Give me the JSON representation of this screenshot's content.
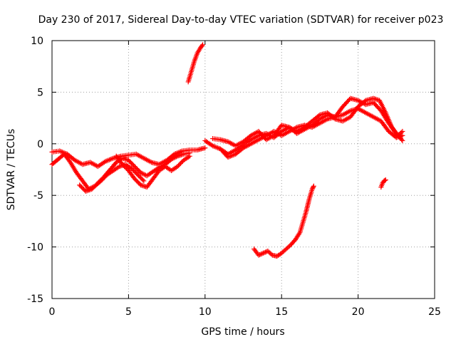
{
  "chart_data": {
    "type": "scatter",
    "title": "Day 230 of 2017, Sidereal Day-to-day VTEC variation (SDTVAR) for receiver p023",
    "xlabel": "GPS time / hours",
    "ylabel": "SDTVAR / TECUs",
    "xlim": [
      0,
      25
    ],
    "ylim": [
      -15,
      10
    ],
    "xticks": [
      "0",
      "5",
      "10",
      "15",
      "20",
      "25"
    ],
    "yticks": [
      "-15",
      "-10",
      "-5",
      "0",
      "5",
      "10"
    ],
    "grid": true,
    "marker": "+",
    "color": "#ff0000",
    "series": [
      {
        "name": "track-a",
        "points": [
          [
            0,
            -0.8
          ],
          [
            0.5,
            -0.7
          ],
          [
            1.0,
            -1.0
          ],
          [
            1.5,
            -1.6
          ],
          [
            2.0,
            -2.0
          ],
          [
            2.5,
            -1.8
          ],
          [
            3.0,
            -2.2
          ],
          [
            3.5,
            -1.7
          ],
          [
            4.0,
            -1.4
          ],
          [
            4.5,
            -1.2
          ],
          [
            5.0,
            -1.1
          ],
          [
            5.5,
            -1.0
          ],
          [
            6.0,
            -1.4
          ],
          [
            6.5,
            -1.8
          ],
          [
            7.0,
            -2.0
          ],
          [
            7.5,
            -1.6
          ],
          [
            8.0,
            -1.0
          ],
          [
            8.5,
            -0.7
          ],
          [
            9.0,
            -0.6
          ],
          [
            9.5,
            -0.6
          ],
          [
            10.0,
            -0.4
          ]
        ]
      },
      {
        "name": "track-b",
        "points": [
          [
            0,
            -2.0
          ],
          [
            0.4,
            -1.5
          ],
          [
            0.8,
            -1.0
          ],
          [
            1.2,
            -1.8
          ],
          [
            1.6,
            -2.8
          ],
          [
            2.0,
            -3.6
          ],
          [
            2.4,
            -4.4
          ],
          [
            2.8,
            -4.1
          ],
          [
            3.2,
            -3.6
          ],
          [
            3.6,
            -3.0
          ],
          [
            4.0,
            -2.6
          ],
          [
            4.4,
            -2.2
          ],
          [
            4.8,
            -2.0
          ],
          [
            5.2,
            -2.4
          ],
          [
            5.6,
            -3.0
          ],
          [
            6.0,
            -3.6
          ]
        ]
      },
      {
        "name": "track-c",
        "points": [
          [
            1.8,
            -4.0
          ],
          [
            2.2,
            -4.6
          ],
          [
            2.6,
            -4.4
          ],
          [
            3.0,
            -3.8
          ],
          [
            3.4,
            -3.2
          ],
          [
            3.8,
            -2.5
          ],
          [
            4.2,
            -1.8
          ],
          [
            4.6,
            -1.4
          ],
          [
            5.0,
            -1.6
          ],
          [
            5.4,
            -2.2
          ],
          [
            5.8,
            -2.8
          ],
          [
            6.2,
            -3.1
          ],
          [
            6.6,
            -2.7
          ],
          [
            7.0,
            -2.3
          ],
          [
            7.4,
            -2.0
          ],
          [
            7.8,
            -1.5
          ],
          [
            8.2,
            -1.2
          ],
          [
            8.6,
            -1.0
          ],
          [
            9.0,
            -0.9
          ]
        ]
      },
      {
        "name": "track-d",
        "points": [
          [
            4.2,
            -1.2
          ],
          [
            4.6,
            -2.0
          ],
          [
            5.0,
            -2.6
          ],
          [
            5.4,
            -3.4
          ],
          [
            5.8,
            -4.0
          ],
          [
            6.2,
            -4.2
          ],
          [
            6.6,
            -3.4
          ],
          [
            7.0,
            -2.6
          ],
          [
            7.4,
            -2.2
          ],
          [
            7.8,
            -2.6
          ],
          [
            8.2,
            -2.2
          ],
          [
            8.6,
            -1.6
          ],
          [
            9.0,
            -1.2
          ]
        ]
      },
      {
        "name": "track-e",
        "points": [
          [
            8.9,
            6.0
          ],
          [
            9.1,
            7.0
          ],
          [
            9.3,
            8.0
          ],
          [
            9.5,
            8.8
          ],
          [
            9.7,
            9.3
          ],
          [
            9.85,
            9.6
          ]
        ]
      },
      {
        "name": "track-f",
        "points": [
          [
            10.0,
            0.3
          ],
          [
            10.5,
            -0.2
          ],
          [
            11.0,
            -0.5
          ],
          [
            11.5,
            -1.0
          ],
          [
            12.0,
            -0.6
          ],
          [
            12.5,
            -0.1
          ],
          [
            13.0,
            0.4
          ],
          [
            13.5,
            0.8
          ],
          [
            14.0,
            1.0
          ],
          [
            14.5,
            0.6
          ],
          [
            15.0,
            1.2
          ],
          [
            15.5,
            1.6
          ],
          [
            16.0,
            1.0
          ],
          [
            16.5,
            1.4
          ],
          [
            17.0,
            1.8
          ],
          [
            17.5,
            2.4
          ],
          [
            18.0,
            2.8
          ],
          [
            18.5,
            2.6
          ],
          [
            19.0,
            2.8
          ],
          [
            19.5,
            3.2
          ],
          [
            20.0,
            3.4
          ],
          [
            20.5,
            3.0
          ],
          [
            21.0,
            2.6
          ],
          [
            21.5,
            2.2
          ],
          [
            22.0,
            1.2
          ],
          [
            22.5,
            0.6
          ],
          [
            22.9,
            0.8
          ]
        ]
      },
      {
        "name": "track-g",
        "points": [
          [
            10.5,
            0.5
          ],
          [
            11.0,
            0.4
          ],
          [
            11.5,
            0.2
          ],
          [
            12.0,
            -0.2
          ],
          [
            12.5,
            0.2
          ],
          [
            13.0,
            0.8
          ],
          [
            13.5,
            1.2
          ],
          [
            14.0,
            0.4
          ],
          [
            14.5,
            0.8
          ],
          [
            15.0,
            1.8
          ],
          [
            15.5,
            1.6
          ],
          [
            16.0,
            1.2
          ],
          [
            16.5,
            1.6
          ],
          [
            17.0,
            2.2
          ],
          [
            17.5,
            2.8
          ],
          [
            18.0,
            3.0
          ],
          [
            18.5,
            2.4
          ],
          [
            19.0,
            2.2
          ],
          [
            19.5,
            2.6
          ],
          [
            20.0,
            3.6
          ],
          [
            20.5,
            4.2
          ],
          [
            21.0,
            4.4
          ],
          [
            21.4,
            4.2
          ],
          [
            21.8,
            3.0
          ],
          [
            22.2,
            1.6
          ],
          [
            22.6,
            0.8
          ],
          [
            22.9,
            1.2
          ]
        ]
      },
      {
        "name": "track-h",
        "points": [
          [
            11.0,
            -0.5
          ],
          [
            11.5,
            -1.3
          ],
          [
            12.0,
            -1.0
          ],
          [
            12.5,
            -0.4
          ],
          [
            13.0,
            0.0
          ],
          [
            13.5,
            0.4
          ],
          [
            14.0,
            0.8
          ],
          [
            14.5,
            1.2
          ],
          [
            15.0,
            0.8
          ],
          [
            15.5,
            1.2
          ],
          [
            16.0,
            1.6
          ],
          [
            16.5,
            1.8
          ],
          [
            17.0,
            1.6
          ],
          [
            17.5,
            2.0
          ],
          [
            18.0,
            2.4
          ],
          [
            18.5,
            2.6
          ],
          [
            19.0,
            3.6
          ],
          [
            19.5,
            4.4
          ],
          [
            20.0,
            4.2
          ],
          [
            20.5,
            3.8
          ],
          [
            21.0,
            4.0
          ],
          [
            21.5,
            3.2
          ],
          [
            22.0,
            2.0
          ],
          [
            22.5,
            1.0
          ],
          [
            22.9,
            0.3
          ]
        ]
      },
      {
        "name": "track-i",
        "points": [
          [
            13.2,
            -10.2
          ],
          [
            13.5,
            -10.8
          ],
          [
            13.8,
            -10.6
          ],
          [
            14.1,
            -10.4
          ],
          [
            14.4,
            -10.8
          ],
          [
            14.7,
            -10.9
          ],
          [
            15.0,
            -10.6
          ],
          [
            15.3,
            -10.2
          ],
          [
            15.6,
            -9.8
          ],
          [
            15.9,
            -9.3
          ],
          [
            16.2,
            -8.6
          ],
          [
            16.4,
            -7.6
          ],
          [
            16.6,
            -6.6
          ],
          [
            16.8,
            -5.4
          ],
          [
            17.0,
            -4.4
          ],
          [
            17.1,
            -4.1
          ]
        ]
      },
      {
        "name": "track-j",
        "points": [
          [
            21.5,
            -4.2
          ],
          [
            21.6,
            -3.8
          ],
          [
            21.7,
            -3.6
          ],
          [
            21.8,
            -3.5
          ]
        ]
      }
    ]
  }
}
